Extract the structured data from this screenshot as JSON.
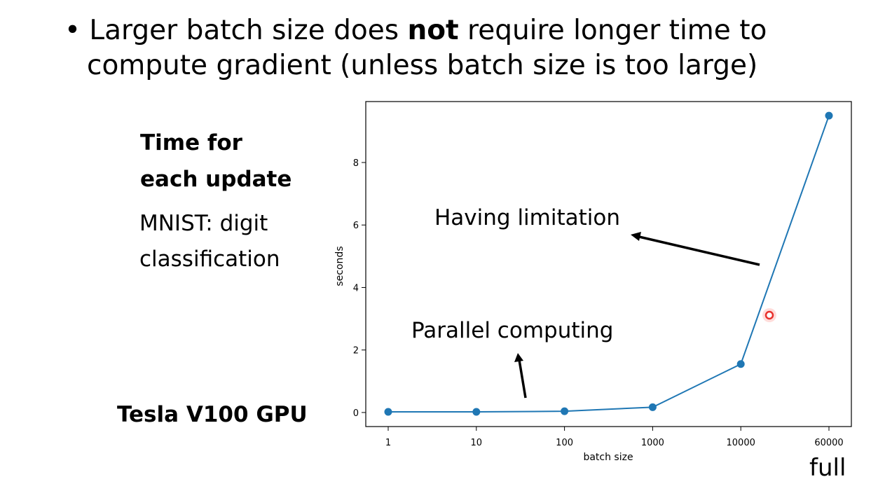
{
  "bullet": {
    "marker": "•",
    "line1_pre": "Larger batch size does ",
    "line1_bold": "not",
    "line1_post": " require longer time to",
    "line2": "compute gradient  (unless batch size is too large)"
  },
  "side": {
    "heading_line1": "Time for",
    "heading_line2": "each update",
    "sub_line1": "MNIST: digit",
    "sub_line2": "classification",
    "gpu": "Tesla V100 GPU"
  },
  "full_label": "full",
  "colors": {
    "series": "#1f77b4",
    "cursor": "#e8312c"
  },
  "chart_data": {
    "type": "line",
    "title": "",
    "xlabel": "batch size",
    "ylabel": "seconds",
    "x": [
      "1",
      "10",
      "100",
      "1000",
      "10000",
      "60000"
    ],
    "y": [
      0.02,
      0.02,
      0.04,
      0.17,
      1.55,
      9.5
    ],
    "x_scale": "categorical",
    "ylim": [
      -0.45,
      9.95
    ],
    "yticks": [
      0,
      2,
      4,
      6,
      8
    ],
    "grid": false,
    "annotations": [
      {
        "text": "Having limitation",
        "arrow": "points toward the steep segment from the text"
      },
      {
        "text": "Parallel computing",
        "arrow": "points from flat segment up to the text"
      }
    ]
  }
}
